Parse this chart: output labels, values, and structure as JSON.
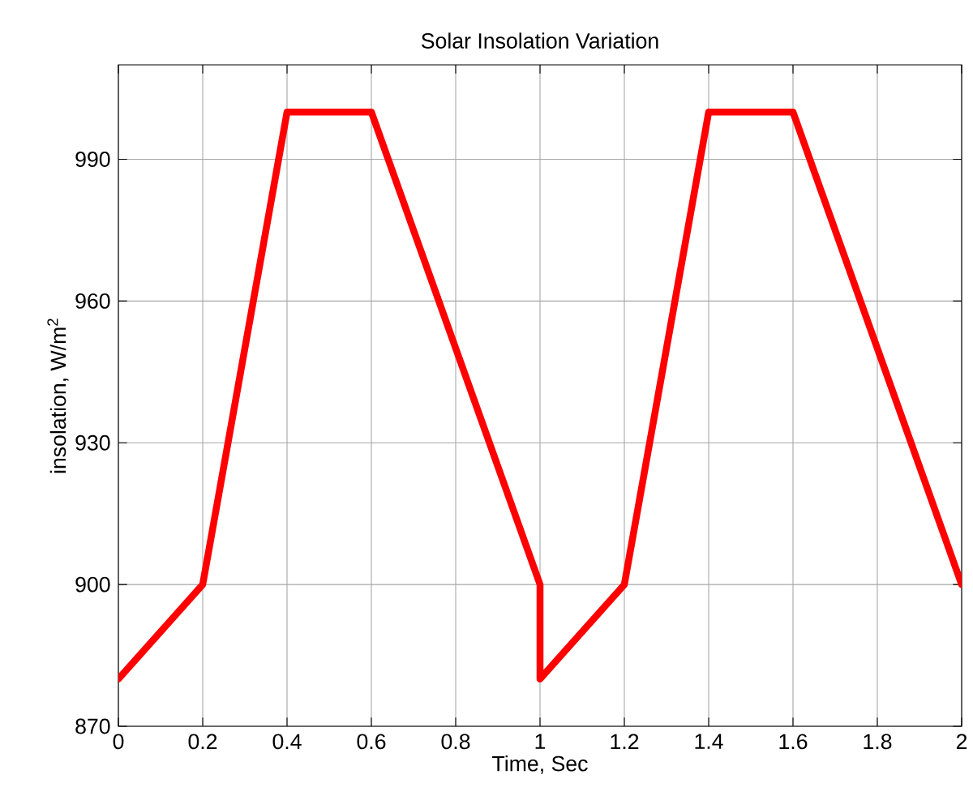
{
  "chart_data": {
    "type": "line",
    "title": "Solar Insolation Variation",
    "xlabel": "Time, Sec",
    "ylabel": "insolation, W/m$^{2}$",
    "x": [
      0,
      0.2,
      0.4,
      0.6,
      1.0,
      1.0,
      1.2,
      1.4,
      1.6,
      2.0
    ],
    "series": [
      {
        "color": "#ff0000",
        "values": [
          880,
          900,
          1000,
          1000,
          900,
          880,
          900,
          1000,
          1000,
          900
        ]
      }
    ],
    "xlim": [
      0,
      2
    ],
    "ylim": [
      870,
      1010
    ],
    "xticks": [
      0,
      0.2,
      0.4,
      0.6,
      0.8,
      1,
      1.2,
      1.4,
      1.6,
      1.8,
      2
    ],
    "yticks": [
      870,
      900,
      930,
      960,
      990
    ],
    "grid": true,
    "marker": "none",
    "line_style": "solid"
  }
}
